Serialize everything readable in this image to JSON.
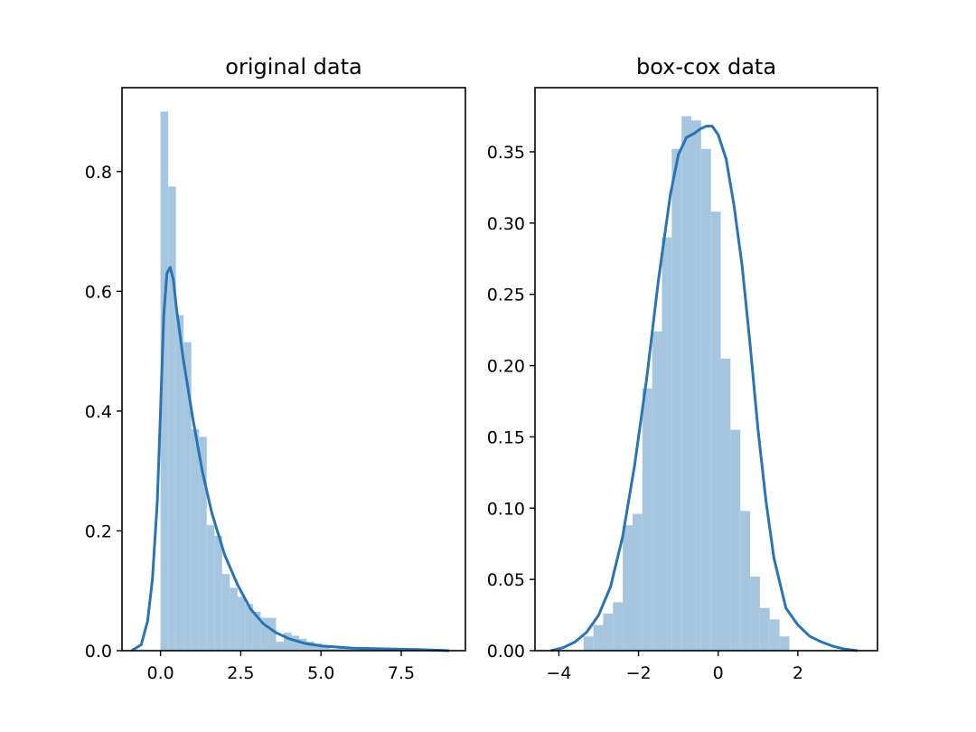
{
  "colors": {
    "bar": "#a6c6e0",
    "kde": "#2a74b3",
    "axis": "#000000"
  },
  "chart_data": [
    {
      "type": "bar",
      "subtype": "histogram-with-density",
      "title": "original data",
      "xlabel": "",
      "ylabel": "",
      "xlim": [
        -1.2,
        9.5
      ],
      "ylim": [
        0,
        0.94
      ],
      "grid": false,
      "xticks": [
        0.0,
        2.5,
        5.0,
        7.5
      ],
      "xtick_labels": [
        "0.0",
        "2.5",
        "5.0",
        "7.5"
      ],
      "yticks": [
        0.0,
        0.2,
        0.4,
        0.6,
        0.8
      ],
      "ytick_labels": [
        "0.0",
        "0.2",
        "0.4",
        "0.6",
        "0.8"
      ],
      "histogram": {
        "bin_start": 0.0,
        "bin_width": 0.24,
        "values": [
          0.9,
          0.775,
          0.56,
          0.515,
          0.37,
          0.357,
          0.21,
          0.192,
          0.128,
          0.105,
          0.09,
          0.078,
          0.065,
          0.055,
          0.055,
          0.015,
          0.03,
          0.025,
          0.02,
          0.015,
          0.012,
          0.006,
          0.003,
          0.006,
          0.005,
          0.005,
          0.002,
          0.002,
          0.002,
          0.002,
          0.001,
          0.001,
          0.001,
          0.001,
          0.001,
          0.001,
          0.001,
          0.001
        ]
      },
      "kde": {
        "x": [
          -0.9,
          -0.6,
          -0.4,
          -0.25,
          -0.1,
          0.0,
          0.1,
          0.2,
          0.3,
          0.4,
          0.5,
          0.7,
          1.0,
          1.3,
          1.6,
          2.0,
          2.4,
          2.8,
          3.2,
          3.6,
          4.0,
          4.5,
          5.0,
          6.0,
          7.0,
          8.0,
          9.0
        ],
        "y": [
          0.0,
          0.01,
          0.05,
          0.12,
          0.25,
          0.4,
          0.56,
          0.63,
          0.64,
          0.62,
          0.57,
          0.49,
          0.39,
          0.3,
          0.23,
          0.16,
          0.11,
          0.07,
          0.045,
          0.03,
          0.02,
          0.012,
          0.008,
          0.004,
          0.003,
          0.002,
          0.0
        ]
      }
    },
    {
      "type": "bar",
      "subtype": "histogram-with-density",
      "title": "box-cox data",
      "xlabel": "",
      "ylabel": "",
      "xlim": [
        -4.6,
        4.0
      ],
      "ylim": [
        0,
        0.395
      ],
      "grid": false,
      "xticks": [
        -4,
        -2,
        0,
        2
      ],
      "xtick_labels": [
        "−4",
        "−2",
        "0",
        "2"
      ],
      "yticks": [
        0.0,
        0.05,
        0.1,
        0.15,
        0.2,
        0.25,
        0.3,
        0.35
      ],
      "ytick_labels": [
        "0.00",
        "0.05",
        "0.10",
        "0.15",
        "0.20",
        "0.25",
        "0.30",
        "0.35"
      ],
      "histogram": {
        "bin_start": -3.38,
        "bin_width": 0.246,
        "values": [
          0.01,
          0.018,
          0.026,
          0.034,
          0.088,
          0.096,
          0.184,
          0.224,
          0.29,
          0.352,
          0.375,
          0.372,
          0.352,
          0.308,
          0.205,
          0.155,
          0.098,
          0.052,
          0.03,
          0.022,
          0.01,
          0.0,
          0.0
        ]
      },
      "kde": {
        "x": [
          -4.2,
          -3.9,
          -3.6,
          -3.3,
          -3.0,
          -2.7,
          -2.4,
          -2.1,
          -1.8,
          -1.5,
          -1.2,
          -1.0,
          -0.8,
          -0.6,
          -0.45,
          -0.3,
          -0.15,
          0.0,
          0.2,
          0.4,
          0.6,
          0.8,
          1.0,
          1.2,
          1.4,
          1.7,
          2.0,
          2.3,
          2.6,
          2.9,
          3.2,
          3.5
        ],
        "y": [
          0.0,
          0.002,
          0.006,
          0.013,
          0.025,
          0.045,
          0.08,
          0.13,
          0.19,
          0.26,
          0.32,
          0.348,
          0.36,
          0.363,
          0.366,
          0.368,
          0.368,
          0.362,
          0.345,
          0.312,
          0.27,
          0.215,
          0.155,
          0.105,
          0.065,
          0.03,
          0.018,
          0.01,
          0.006,
          0.003,
          0.001,
          0.0
        ]
      }
    }
  ]
}
